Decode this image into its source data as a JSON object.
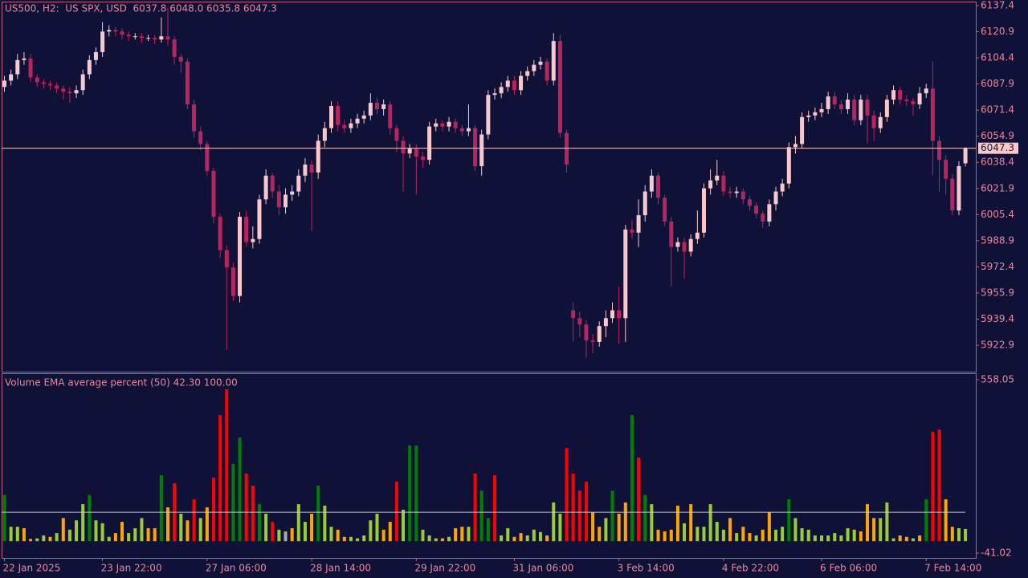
{
  "chart_data": [
    {
      "type": "candlestick",
      "title": "US500, H2:  US SPX, USD  6037.8 6048.0 6035.8 6047.3",
      "categories": [
        "22 Jan 2025",
        null,
        null,
        null,
        null,
        null,
        null,
        null,
        null,
        null,
        null,
        null,
        null,
        null,
        null,
        "23 Jan 22:00",
        null,
        null,
        null,
        null,
        null,
        null,
        null,
        null,
        null,
        null,
        null,
        null,
        null,
        null,
        null,
        "27 Jan 06:00",
        null,
        null,
        null,
        null,
        null,
        null,
        null,
        null,
        null,
        null,
        null,
        null,
        null,
        null,
        null,
        "28 Jan 14:00",
        null,
        null,
        null,
        null,
        null,
        null,
        null,
        null,
        null,
        null,
        null,
        null,
        null,
        null,
        null,
        "29 Jan 22:00",
        null,
        null,
        null,
        null,
        null,
        null,
        null,
        null,
        null,
        null,
        null,
        null,
        null,
        null,
        "31 Jan 06:00",
        null,
        null,
        null,
        null,
        null,
        null,
        null,
        null,
        null,
        null,
        null,
        null,
        null,
        null,
        null,
        "3 Feb 14:00",
        null,
        null,
        null,
        null,
        null,
        null,
        null,
        null,
        null,
        null,
        null,
        null,
        null,
        null,
        null,
        "4 Feb 22:00",
        null,
        null,
        null,
        null,
        null,
        null,
        null,
        null,
        null,
        null,
        null,
        null,
        null,
        null,
        "6 Feb 06:00",
        null,
        null,
        null,
        null,
        null,
        null,
        null,
        null,
        null,
        null,
        null,
        null,
        null,
        null,
        null,
        "7 Feb 14:00",
        null,
        null,
        null,
        null,
        null,
        null
      ],
      "open": [
        6086,
        6090,
        6094,
        6103,
        6104,
        6092,
        6089,
        6088,
        6087,
        6085,
        6083,
        6082,
        6084,
        6094,
        6103,
        6108,
        6121,
        6122,
        6121,
        6119,
        6118,
        6118,
        6117,
        6117,
        6116,
        6118,
        6116,
        6105,
        6102,
        6075,
        6058,
        6050,
        6033,
        6004,
        5983,
        5972,
        5954,
        6004,
        5988,
        5990,
        6015,
        6030,
        6020,
        6010,
        6018,
        6020,
        6030,
        6037,
        6032,
        6052,
        6060,
        6074,
        6062,
        6060,
        6063,
        6066,
        6068,
        6076,
        6072,
        6075,
        6060,
        6052,
        6044,
        6047,
        6042,
        6040,
        6061,
        6063,
        6061,
        6064,
        6060,
        6058,
        6060,
        6036,
        6056,
        6081,
        6082,
        6086,
        6090,
        6084,
        6093,
        6096,
        6100,
        6102,
        6090,
        6115,
        6057,
        5945,
        5940,
        5936,
        5926,
        5925,
        5935,
        5940,
        5945,
        5940,
        5996,
        5994,
        6005,
        6020,
        6030,
        6016,
        6001,
        5985,
        5988,
        5982,
        5990,
        5994,
        6022,
        6027,
        6030,
        6020,
        6019,
        6020,
        6015,
        6011,
        6006,
        6001,
        6012,
        6020,
        6025,
        6048,
        6050,
        6067,
        6068,
        6070,
        6072,
        6080,
        6075,
        6072,
        6078,
        6065,
        6078,
        6068,
        6060,
        6067,
        6078,
        6084,
        6078,
        6077,
        6075,
        6082,
        6085,
        6052,
        6040,
        6028,
        6008,
        6037.8
      ],
      "high": [
        6093,
        6097,
        6107,
        6108,
        6107,
        6094,
        6091,
        6090,
        6089,
        6087,
        6086,
        6087,
        6097,
        6106,
        6111,
        6127,
        6125,
        6124,
        6123,
        6121,
        6120,
        6120,
        6119,
        6119,
        6130,
        6136,
        6118,
        6107,
        6104,
        6078,
        6061,
        6052,
        6035,
        6006,
        5986,
        5975,
        6007,
        6008,
        5998,
        6018,
        6034,
        6032,
        6024,
        6022,
        6024,
        6034,
        6041,
        6040,
        6056,
        6064,
        6077,
        6077,
        6065,
        6066,
        6069,
        6071,
        6082,
        6079,
        6078,
        6077,
        6062,
        6055,
        6050,
        6050,
        6045,
        6064,
        6066,
        6065,
        6067,
        6066,
        6062,
        6075,
        6062,
        6059,
        6084,
        6085,
        6089,
        6093,
        6093,
        6096,
        6099,
        6103,
        6105,
        6104,
        6120,
        6119,
        6059,
        5950,
        5944,
        5939,
        5930,
        5938,
        5945,
        5950,
        5960,
        5999,
        6002,
        6015,
        6024,
        6034,
        6032,
        6018,
        6004,
        5991,
        5991,
        5993,
        6008,
        6025,
        6034,
        6040,
        6033,
        6023,
        6023,
        6022,
        6017,
        6013,
        6008,
        6015,
        6023,
        6028,
        6051,
        6055,
        6070,
        6071,
        6073,
        6076,
        6083,
        6083,
        6078,
        6082,
        6081,
        6081,
        6081,
        6071,
        6070,
        6081,
        6087,
        6086,
        6081,
        6079,
        6086,
        6088,
        6102,
        6055,
        6043,
        6031,
        6039,
        6048
      ],
      "low": [
        6083,
        6087,
        6091,
        6100,
        6089,
        6086,
        6085,
        6084,
        6082,
        6078,
        6076,
        6079,
        6081,
        6091,
        6100,
        6105,
        6118,
        6118,
        6116,
        6115,
        6116,
        6114,
        6115,
        6113,
        6114,
        6112,
        6100,
        6095,
        6072,
        6054,
        6046,
        6030,
        6000,
        5978,
        5920,
        5951,
        5950,
        5985,
        5984,
        5987,
        6012,
        6016,
        6005,
        6006,
        6014,
        6017,
        6026,
        5995,
        6028,
        6048,
        6057,
        6058,
        6057,
        6057,
        6060,
        6063,
        6065,
        6069,
        6068,
        6056,
        6045,
        6020,
        6041,
        6018,
        6035,
        6037,
        6058,
        6058,
        6058,
        6057,
        6055,
        6055,
        6033,
        6030,
        6053,
        6078,
        6079,
        6083,
        6081,
        6081,
        6090,
        6093,
        6097,
        6087,
        6087,
        6054,
        6032,
        5925,
        5928,
        5915,
        5918,
        5922,
        5928,
        5937,
        5924,
        5925,
        5990,
        5985,
        6001,
        6016,
        6012,
        5998,
        5960,
        5982,
        5965,
        5979,
        5987,
        5991,
        6018,
        6024,
        6017,
        6016,
        6016,
        6012,
        6008,
        6003,
        5997,
        5998,
        6008,
        6017,
        6022,
        6044,
        6047,
        6064,
        6065,
        6067,
        6069,
        6072,
        6069,
        6069,
        6062,
        6062,
        6050,
        6052,
        6057,
        6064,
        6075,
        6075,
        6074,
        6068,
        6072,
        6079,
        6030,
        6020,
        6018,
        6005,
        6005,
        6035.8
      ],
      "close": [
        6090,
        6094,
        6103,
        6104,
        6092,
        6089,
        6088,
        6087,
        6085,
        6083,
        6082,
        6084,
        6094,
        6103,
        6108,
        6121,
        6122,
        6121,
        6119,
        6118,
        6118,
        6117,
        6117,
        6116,
        6118,
        6116,
        6105,
        6102,
        6075,
        6058,
        6050,
        6033,
        6004,
        5983,
        5972,
        5954,
        6004,
        5988,
        5990,
        6015,
        6030,
        6020,
        6010,
        6018,
        6020,
        6030,
        6037,
        6032,
        6052,
        6060,
        6074,
        6062,
        6060,
        6063,
        6066,
        6068,
        6076,
        6072,
        6075,
        6060,
        6052,
        6044,
        6047,
        6042,
        6040,
        6061,
        6063,
        6061,
        6064,
        6060,
        6058,
        6060,
        6036,
        6056,
        6081,
        6082,
        6086,
        6090,
        6084,
        6093,
        6096,
        6100,
        6102,
        6090,
        6115,
        6057,
        6037,
        5940,
        5936,
        5926,
        5925,
        5935,
        5940,
        5945,
        5940,
        5996,
        5994,
        6005,
        6020,
        6030,
        6016,
        6001,
        5985,
        5988,
        5982,
        5990,
        5994,
        6022,
        6027,
        6030,
        6020,
        6019,
        6020,
        6015,
        6011,
        6006,
        6001,
        6012,
        6020,
        6025,
        6048,
        6050,
        6067,
        6068,
        6070,
        6072,
        6080,
        6075,
        6072,
        6078,
        6065,
        6078,
        6068,
        6060,
        6067,
        6078,
        6084,
        6078,
        6077,
        6075,
        6082,
        6085,
        6052,
        6040,
        6028,
        6008,
        6036,
        6047.3
      ],
      "up_color": "#f7c9cc",
      "down_color": "#b8245e",
      "ylim": [
        5906.2,
        6139.4
      ],
      "yticks": [
        6137.4,
        6120.9,
        6104.4,
        6087.9,
        6071.4,
        6054.9,
        6038.4,
        6021.9,
        6005.4,
        5988.9,
        5972.4,
        5955.9,
        5939.4,
        5922.9
      ]
    },
    {
      "type": "bar",
      "title": "Volume EMA average percent (50) 42.30 100.00",
      "values": [
        160,
        50,
        50,
        45,
        8,
        10,
        20,
        15,
        28,
        80,
        40,
        72,
        128,
        160,
        72,
        62,
        15,
        28,
        67,
        28,
        45,
        80,
        45,
        45,
        228,
        117,
        200,
        95,
        72,
        145,
        80,
        117,
        220,
        436,
        525,
        267,
        358,
        234,
        192,
        128,
        95,
        67,
        40,
        34,
        45,
        128,
        67,
        95,
        192,
        123,
        50,
        40,
        15,
        15,
        10,
        20,
        72,
        95,
        40,
        67,
        206,
        109,
        331,
        331,
        40,
        20,
        10,
        10,
        15,
        45,
        50,
        50,
        234,
        175,
        80,
        228,
        20,
        45,
        15,
        28,
        20,
        40,
        32,
        20,
        134,
        95,
        322,
        234,
        175,
        206,
        100,
        50,
        80,
        175,
        95,
        134,
        436,
        289,
        160,
        128,
        40,
        34,
        40,
        123,
        62,
        128,
        50,
        50,
        128,
        67,
        40,
        80,
        28,
        50,
        28,
        20,
        40,
        100,
        40,
        50,
        145,
        80,
        45,
        40,
        20,
        20,
        20,
        28,
        20,
        45,
        40,
        34,
        128,
        80,
        80,
        134,
        10,
        20,
        15,
        10,
        20,
        145,
        378,
        386,
        145,
        50,
        45,
        42.3
      ],
      "colors": [
        "green",
        "yellowgreen",
        "yellowgreen",
        "orange",
        "orange",
        "yellowgreen",
        "yellowgreen",
        "orange",
        "yellowgreen",
        "orange",
        "yellowgreen",
        "yellowgreen",
        "yellowgreen",
        "green",
        "yellowgreen",
        "yellowgreen",
        "yellowgreen",
        "orange",
        "orange",
        "yellowgreen",
        "yellowgreen",
        "yellowgreen",
        "orange",
        "orange",
        "green",
        "orange",
        "red",
        "yellowgreen",
        "orange",
        "red",
        "yellowgreen",
        "orange",
        "red",
        "red",
        "red",
        "green",
        "green",
        "red",
        "red",
        "green",
        "yellowgreen",
        "red",
        "yellowgreen",
        "darkgray",
        "orange",
        "yellowgreen",
        "yellowgreen",
        "orange",
        "green",
        "yellowgreen",
        "yellowgreen",
        "orange",
        "orange",
        "yellowgreen",
        "yellowgreen",
        "yellowgreen",
        "yellowgreen",
        "yellowgreen",
        "orange",
        "orange",
        "red",
        "yellowgreen",
        "green",
        "green",
        "yellowgreen",
        "yellowgreen",
        "yellowgreen",
        "orange",
        "yellowgreen",
        "orange",
        "orange",
        "yellowgreen",
        "red",
        "green",
        "green",
        "red",
        "yellowgreen",
        "yellowgreen",
        "orange",
        "orange",
        "yellowgreen",
        "yellowgreen",
        "yellowgreen",
        "orange",
        "yellowgreen",
        "yellowgreen",
        "red",
        "red",
        "red",
        "red",
        "orange",
        "orange",
        "yellowgreen",
        "green",
        "orange",
        "orange",
        "green",
        "red",
        "green",
        "yellowgreen",
        "orange",
        "orange",
        "orange",
        "orange",
        "yellowgreen",
        "orange",
        "yellowgreen",
        "yellowgreen",
        "yellowgreen",
        "yellowgreen",
        "yellowgreen",
        "orange",
        "yellowgreen",
        "orange",
        "orange",
        "yellowgreen",
        "orange",
        "orange",
        "yellowgreen",
        "yellowgreen",
        "green",
        "yellowgreen",
        "yellowgreen",
        "yellowgreen",
        "yellowgreen",
        "yellowgreen",
        "yellowgreen",
        "yellowgreen",
        "yellowgreen",
        "yellowgreen",
        "yellowgreen",
        "orange",
        "orange",
        "orange",
        "yellowgreen",
        "yellowgreen",
        "yellowgreen",
        "orange",
        "orange",
        "yellowgreen",
        "orange",
        "green",
        "red",
        "red",
        "orange",
        "orange",
        "yellowgreen",
        "yellowgreen"
      ],
      "level": 100,
      "ylim": [
        -57.7,
        577.5
      ],
      "yticks": [
        558.05,
        -41.02
      ]
    }
  ]
}
